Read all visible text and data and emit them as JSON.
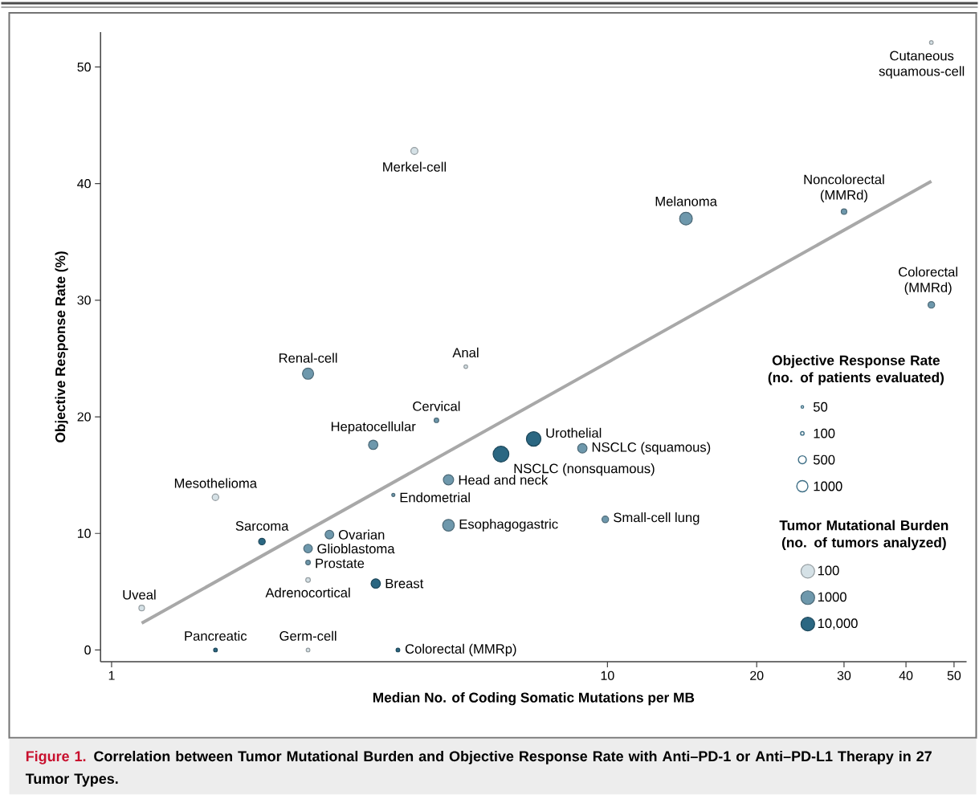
{
  "chart_data": {
    "type": "bubble",
    "xlabel": "Median No. of Coding Somatic Mutations per MB",
    "ylabel": "Objective Response Rate (%)",
    "legend_title": "Tumor Mutational Burden (no. of tumors analyzed)",
    "log": "x",
    "legend": "right",
    "xlim": [
      0.95,
      53
    ],
    "ylim": [
      -1,
      53
    ],
    "xticks": [
      1,
      10,
      20,
      30,
      40,
      50
    ],
    "yticks": [
      0,
      10,
      20,
      30,
      40,
      50
    ],
    "size_legend": [
      {
        "value": 50,
        "label": "50"
      },
      {
        "value": 100,
        "label": "100"
      },
      {
        "value": 500,
        "label": "500"
      },
      {
        "value": 1000,
        "label": "1000"
      }
    ],
    "series": [
      {
        "name": "100",
        "color": "#d5e1e6",
        "x": [
          45,
          4.08,
          5.18,
          1.62,
          2.49,
          1.15,
          2.49
        ],
        "values": [
          52.1,
          42.8,
          24.3,
          13.1,
          6.0,
          3.6,
          0
        ],
        "sizes": [
          110,
          400,
          110,
          350,
          170,
          250,
          110
        ]
      },
      {
        "name": "1000",
        "color": "#6e98ac",
        "x": [
          14.4,
          30,
          45,
          2.49,
          4.52,
          3.37,
          8.9,
          4.78,
          3.7,
          9.9,
          4.78,
          2.75,
          2.49,
          2.49
        ],
        "values": [
          37.0,
          37.6,
          29.6,
          23.7,
          19.7,
          17.6,
          17.3,
          14.6,
          13.3,
          11.2,
          10.7,
          9.9,
          8.7,
          7.5
        ],
        "sizes": [
          1300,
          250,
          350,
          1000,
          170,
          700,
          700,
          850,
          80,
          350,
          1100,
          600,
          600,
          170
        ]
      },
      {
        "name": "10,000",
        "color": "#2b6782",
        "x": [
          7.1,
          6.1,
          2.01,
          3.41,
          1.62,
          3.78
        ],
        "values": [
          18.1,
          16.8,
          9.3,
          5.7,
          0,
          0
        ],
        "sizes": [
          1700,
          2000,
          350,
          700,
          110,
          110
        ]
      },
      {
        "type": "line",
        "color": "#a8a8a8",
        "line_style": "solid",
        "marker": "none",
        "x": [
          1.15,
          45
        ],
        "values": [
          2.3,
          40.2
        ]
      }
    ],
    "annotations": [
      "Figure 1.",
      "Correlation between Tumor Mutational Burden and Objective Response Rate with Anti–PD-1 or Anti–PD-L1 Therapy in 27 Tumor Types.",
      "Objective Response Rate (no. of patients evaluated)",
      {
        "text": "Cutaneous squamous-cell",
        "x": 45,
        "y": 52.1
      },
      {
        "text": "Merkel-cell",
        "x": 4.08,
        "y": 42.8
      },
      {
        "text": "Melanoma",
        "x": 14.4,
        "y": 37.0
      },
      {
        "text": "Noncolorectal (MMRd)",
        "x": 30,
        "y": 37.6
      },
      {
        "text": "Colorectal (MMRd)",
        "x": 45,
        "y": 29.6
      },
      {
        "text": "Renal-cell",
        "x": 2.49,
        "y": 23.7
      },
      {
        "text": "Anal",
        "x": 5.18,
        "y": 24.3
      },
      {
        "text": "Cervical",
        "x": 4.52,
        "y": 19.7
      },
      {
        "text": "Hepatocellular",
        "x": 3.37,
        "y": 17.6
      },
      {
        "text": "Urothelial",
        "x": 7.1,
        "y": 18.1
      },
      {
        "text": "NSCLC (squamous)",
        "x": 8.9,
        "y": 17.3
      },
      {
        "text": "NSCLC (nonsquamous)",
        "x": 6.1,
        "y": 16.8
      },
      {
        "text": "Head and neck",
        "x": 4.78,
        "y": 14.6
      },
      {
        "text": "Endometrial",
        "x": 3.7,
        "y": 13.3
      },
      {
        "text": "Mesothelioma",
        "x": 1.62,
        "y": 13.1
      },
      {
        "text": "Small-cell lung",
        "x": 9.9,
        "y": 11.2
      },
      {
        "text": "Esophagogastric",
        "x": 4.78,
        "y": 10.7
      },
      {
        "text": "Sarcoma",
        "x": 2.01,
        "y": 9.3
      },
      {
        "text": "Ovarian",
        "x": 2.75,
        "y": 9.9
      },
      {
        "text": "Glioblastoma",
        "x": 2.49,
        "y": 8.7
      },
      {
        "text": "Prostate",
        "x": 2.49,
        "y": 7.5
      },
      {
        "text": "Adrenocortical",
        "x": 2.49,
        "y": 6.0
      },
      {
        "text": "Breast",
        "x": 3.41,
        "y": 5.7
      },
      {
        "text": "Uveal",
        "x": 1.15,
        "y": 3.6
      },
      {
        "text": "Pancreatic",
        "x": 1.62,
        "y": 0
      },
      {
        "text": "Germ-cell",
        "x": 2.49,
        "y": 0
      },
      {
        "text": "Colorectal (MMRp)",
        "x": 3.78,
        "y": 0
      }
    ]
  }
}
